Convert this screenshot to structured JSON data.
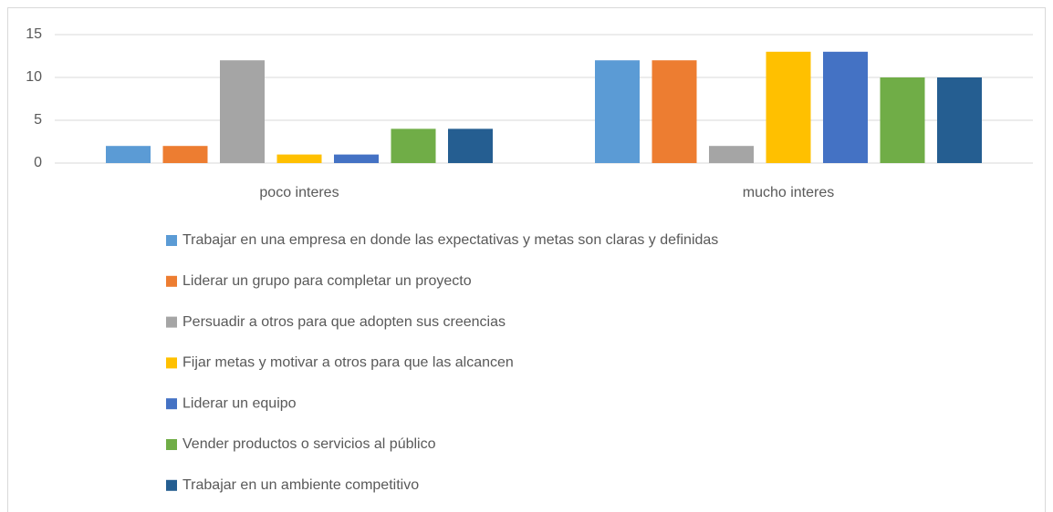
{
  "chart_data": {
    "type": "bar",
    "categories": [
      "poco interes",
      "mucho interes"
    ],
    "series": [
      {
        "name": "Trabajar en una empresa en donde las expectativas y metas son claras y definidas",
        "color": "#5b9bd5",
        "values": [
          2,
          12
        ]
      },
      {
        "name": "Liderar un grupo para completar un proyecto",
        "color": "#ed7d31",
        "values": [
          2,
          12
        ]
      },
      {
        "name": "Persuadir a otros para que adopten sus creencias",
        "color": "#a5a5a5",
        "values": [
          12,
          2
        ]
      },
      {
        "name": "Fijar metas y motivar a  otros para que las alcancen",
        "color": "#ffc000",
        "values": [
          1,
          13
        ]
      },
      {
        "name": "Liderar un equipo",
        "color": "#4472c4",
        "values": [
          1,
          13
        ]
      },
      {
        "name": "Vender productos o servicios al público",
        "color": "#70ad47",
        "values": [
          4,
          10
        ]
      },
      {
        "name": "Trabajar en un ambiente competitivo",
        "color": "#255e91",
        "values": [
          4,
          10
        ]
      }
    ],
    "ylim": [
      0,
      15
    ],
    "yticks": [
      0,
      5,
      10,
      15
    ],
    "grid": true,
    "legend": "bottom"
  }
}
